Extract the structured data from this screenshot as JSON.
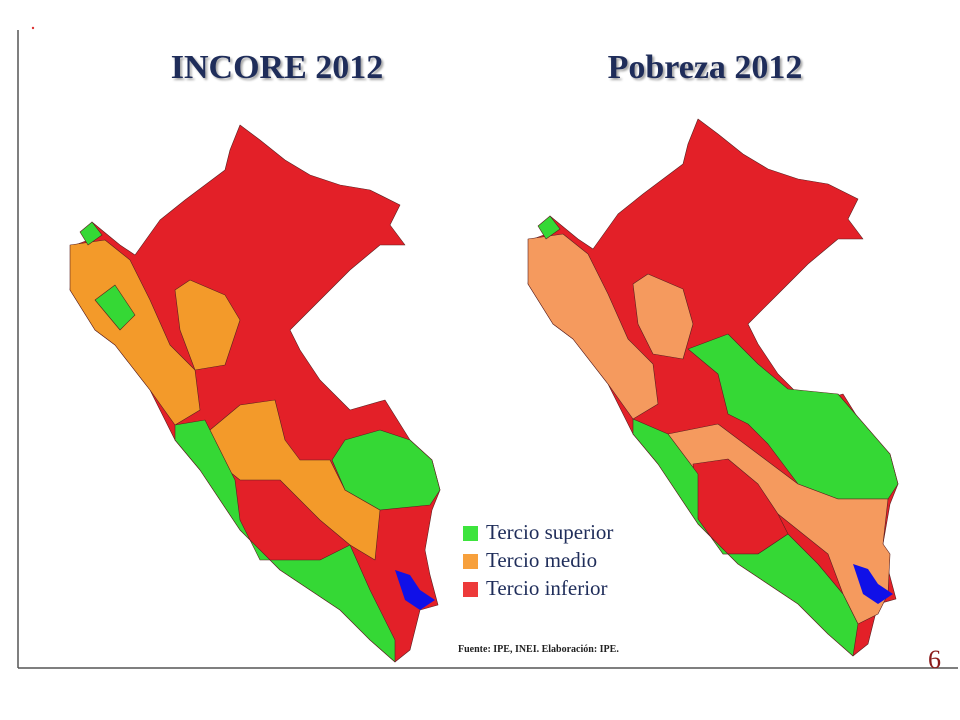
{
  "maps": [
    {
      "title": "INCORE 2012"
    },
    {
      "title": "Pobreza 2012"
    }
  ],
  "legend": [
    {
      "label": "Tercio superior",
      "color": "#3de43d"
    },
    {
      "label": "Tercio medio",
      "color": "#f7a03c"
    },
    {
      "label": "Tercio inferior",
      "color": "#ed3a3a"
    }
  ],
  "source": "Fuente: IPE, INEI. Elaboración: IPE.",
  "page_number": "6"
}
